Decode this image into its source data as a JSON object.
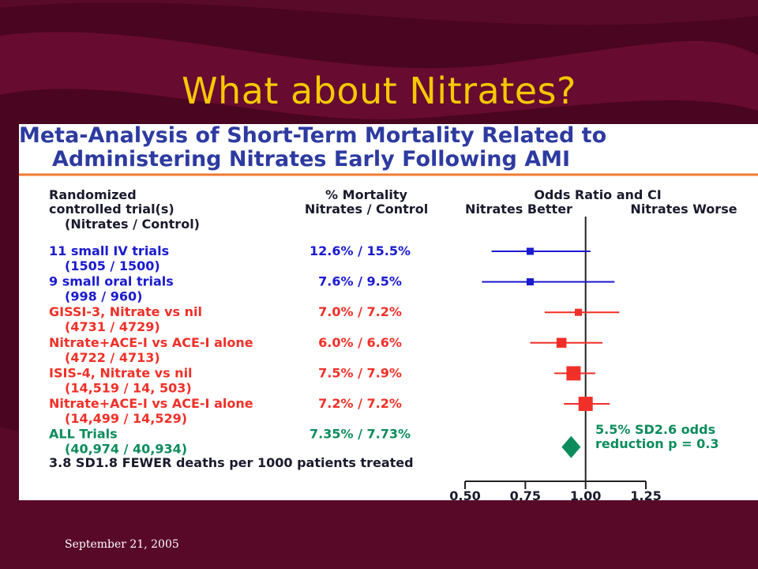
{
  "slide": {
    "title": "What about Nitrates?",
    "date": "September 21, 2005"
  },
  "colors": {
    "background": "#4a0520",
    "title": "#f5c800",
    "blue": "#1a1ad0",
    "red": "#f03028",
    "green": "#0c8c5c",
    "dark_text": "#1a1a2e",
    "title_blue": "#2d3ba0",
    "rule_orange": "#f07a30"
  },
  "chart_data": {
    "type": "forest",
    "title_lines": [
      "Meta-Analysis of Short-Term Mortality Related to",
      "Administering Nitrates Early Following AMI"
    ],
    "column_headers": {
      "trial": [
        "Randomized",
        "controlled trial(s)",
        "(Nitrates / Control)"
      ],
      "mortality": [
        "% Mortality",
        "Nitrates / Control"
      ],
      "odds": "Odds Ratio and CI",
      "better": "Nitrates Better",
      "worse": "Nitrates Worse"
    },
    "xlim": [
      0.5,
      1.25
    ],
    "ticks": [
      0.5,
      0.75,
      1.0,
      1.25
    ],
    "tick_labels": [
      "0.50",
      "0.75",
      "1.00",
      "1.25"
    ],
    "reference_line": 1.0,
    "trials": [
      {
        "name": "11 small IV trials",
        "counts": "(1505 / 1500)",
        "mortality": "12.6% / 15.5%",
        "or": 0.77,
        "ci": [
          0.61,
          1.02
        ],
        "size": 1,
        "color": "blue"
      },
      {
        "name": "9 small oral trials",
        "counts": "(998 / 960)",
        "mortality": "7.6% / 9.5%",
        "or": 0.77,
        "ci": [
          0.57,
          1.12
        ],
        "size": 1,
        "color": "blue"
      },
      {
        "name": "GISSI-3, Nitrate vs nil",
        "counts": "(4731 / 4729)",
        "mortality": "7.0% / 7.2%",
        "or": 0.97,
        "ci": [
          0.83,
          1.14
        ],
        "size": 1,
        "color": "red"
      },
      {
        "name": "Nitrate+ACE-I vs ACE-I alone",
        "counts": "(4722 / 4713)",
        "mortality": "6.0% / 6.6%",
        "or": 0.9,
        "ci": [
          0.77,
          1.07
        ],
        "size": 1.4,
        "color": "red"
      },
      {
        "name": "ISIS-4, Nitrate vs nil",
        "counts": "(14,519 / 14, 503)",
        "mortality": "7.5% / 7.9%",
        "or": 0.95,
        "ci": [
          0.87,
          1.04
        ],
        "size": 2,
        "color": "red"
      },
      {
        "name": "Nitrate+ACE-I vs ACE-I alone",
        "counts": "(14,499 / 14,529)",
        "mortality": "7.2% / 7.2%",
        "or": 1.0,
        "ci": [
          0.91,
          1.1
        ],
        "size": 2,
        "color": "red"
      }
    ],
    "summary": {
      "name": "ALL Trials",
      "counts": "(40,974 / 40,934)",
      "mortality": "7.35% / 7.73%",
      "or": 0.94,
      "color": "green",
      "annotation": [
        "5.5% SD2.6 odds",
        "reduction p = 0.3"
      ]
    },
    "footnote": "3.8 SD1.8 FEWER deaths per 1000 patients treated"
  }
}
